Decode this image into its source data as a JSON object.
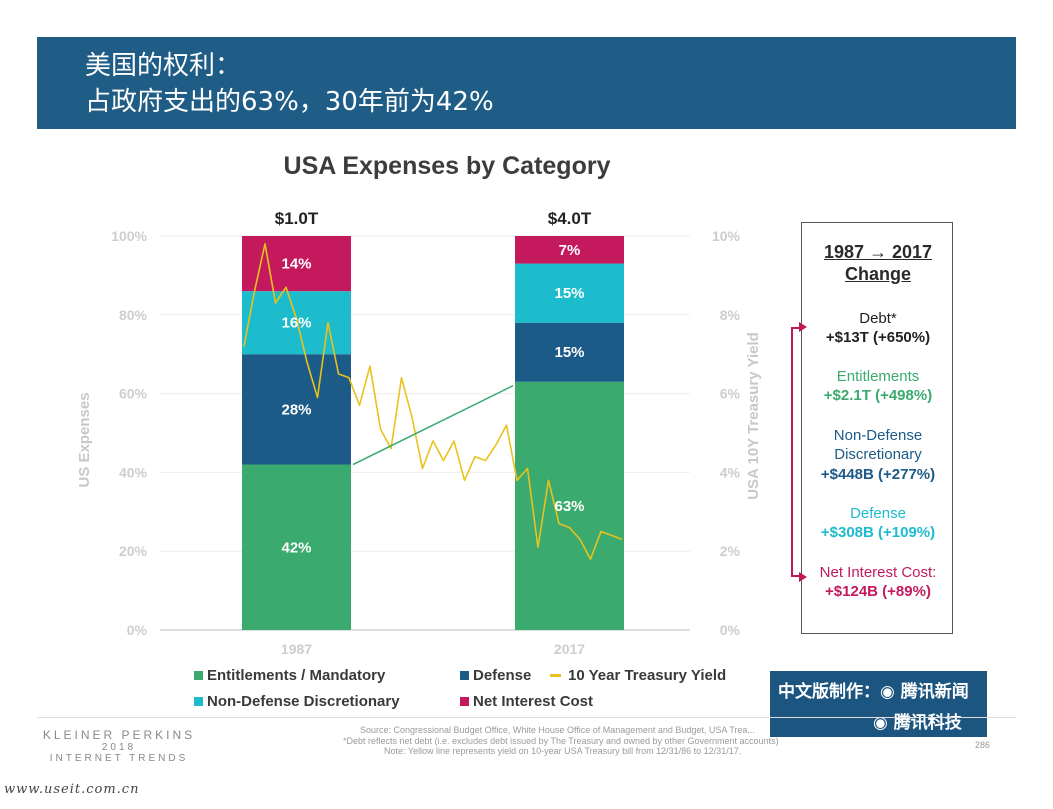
{
  "header": {
    "title_line1": "美国的权利：",
    "title_line2": "占政府支出的63%，30年前为42%"
  },
  "chart_data": {
    "type": "bar",
    "title": "USA Expenses by Category",
    "categories": [
      "1987",
      "2017"
    ],
    "totals": [
      "$1.0T",
      "$4.0T"
    ],
    "ylabel": "US Expenses",
    "y2label": "USA 10Y Treasury Yield",
    "ylim": [
      0,
      100
    ],
    "y2lim": [
      0,
      10
    ],
    "yticks": [
      "0%",
      "20%",
      "40%",
      "60%",
      "80%",
      "100%"
    ],
    "y2ticks": [
      "0%",
      "2%",
      "4%",
      "6%",
      "8%",
      "10%"
    ],
    "series": [
      {
        "name": "Entitlements / Mandatory",
        "values": [
          42,
          63
        ],
        "labels": [
          "42%",
          "63%"
        ],
        "color": "#3aaa6e"
      },
      {
        "name": "Defense",
        "values": [
          28,
          15
        ],
        "labels": [
          "28%",
          "15%"
        ],
        "color": "#1c5a87"
      },
      {
        "name": "Non-Defense Discretionary",
        "values": [
          16,
          15
        ],
        "labels": [
          "16%",
          "15%"
        ],
        "color": "#1dbccd"
      },
      {
        "name": "Net Interest Cost",
        "values": [
          14,
          7
        ],
        "labels": [
          "14%",
          "7%"
        ],
        "color": "#c4195d"
      }
    ],
    "line_series": {
      "name": "10 Year Treasury Yield",
      "axis": "right",
      "color": "#e8c21d",
      "x_range": [
        "12/31/86",
        "12/31/17"
      ],
      "values": [
        7.2,
        8.6,
        9.8,
        8.3,
        8.7,
        7.9,
        6.8,
        5.9,
        7.8,
        6.5,
        6.4,
        5.7,
        6.7,
        5.1,
        4.6,
        6.4,
        5.4,
        4.1,
        4.8,
        4.3,
        4.8,
        3.8,
        4.4,
        4.3,
        4.7,
        5.2,
        3.8,
        4.1,
        2.1,
        3.8,
        2.7,
        2.6,
        2.3,
        1.8,
        2.5,
        2.4,
        2.3
      ]
    },
    "trend_line": {
      "color": "#3aaa6e",
      "values": [
        4.2,
        6.2
      ]
    },
    "legend_position": "bottom"
  },
  "change_box": {
    "heading_line1": "1987 → 2017",
    "heading_line2": "Change",
    "items": [
      {
        "label": "Debt*",
        "value": "+$13T (+650%)",
        "color": "#222222"
      },
      {
        "label": "Entitlements",
        "value": "+$2.1T (+498%)",
        "color": "#3aaa6e"
      },
      {
        "label": "Non-Defense",
        "label2": "Discretionary",
        "value": "+$448B (+277%)",
        "color": "#1c5a87"
      },
      {
        "label": "Defense",
        "value": "+$308B (+109%)",
        "color": "#1dbccd"
      },
      {
        "label": "Net Interest Cost:",
        "value": "+$124B (+89%)",
        "color": "#c4195d"
      }
    ]
  },
  "tencent": {
    "line1": "中文版制作：◉ 腾讯新闻",
    "line2": "◉ 腾讯科技"
  },
  "footer": {
    "source": "Source: Congressional Budget Office, White House Office of Management and Budget, USA Trea...",
    "debt_note": "*Debt reflects net debt (i.e. excludes debt issued by The Treasury and owned by other Government accounts)",
    "yield_note": "Note: Yellow line represents yield on 10-year USA Treasury bill from 12/31/86 to 12/31/17.",
    "brand_line1": "KLEINER PERKINS",
    "brand_line2": "2018",
    "brand_line3": "INTERNET TRENDS",
    "page_number": "286",
    "watermark_url": "www.useit.com.cn"
  }
}
